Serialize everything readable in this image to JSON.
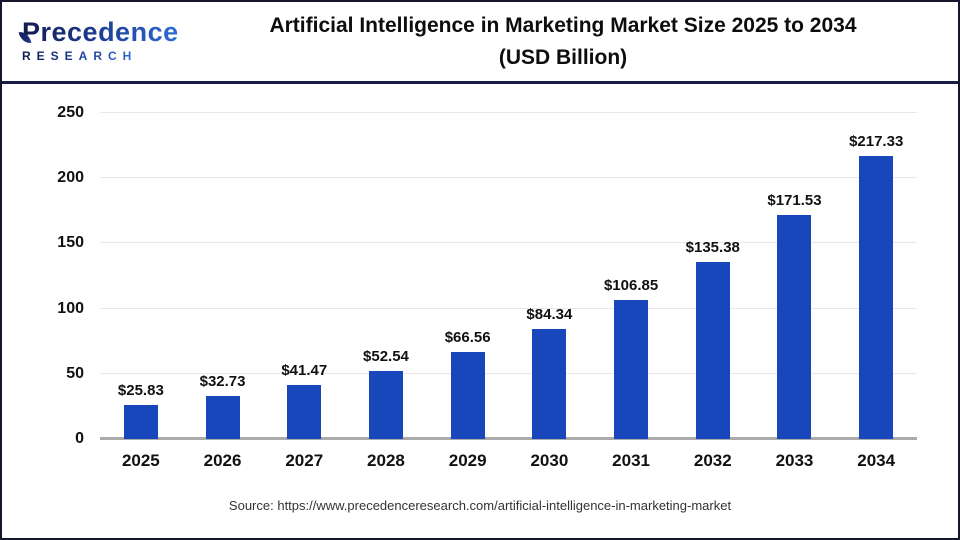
{
  "brand": {
    "name_line1": "Precedence",
    "name_line2": "RESEARCH"
  },
  "header": {
    "title_line1": "Artificial Intelligence in Marketing Market Size 2025 to 2034",
    "title_line2": "(USD Billion)"
  },
  "chart_data": {
    "type": "bar",
    "title": "Artificial Intelligence in Marketing Market Size 2025 to 2034 (USD Billion)",
    "categories": [
      "2025",
      "2026",
      "2027",
      "2028",
      "2029",
      "2030",
      "2031",
      "2032",
      "2033",
      "2034"
    ],
    "values": [
      25.83,
      32.73,
      41.47,
      52.54,
      66.56,
      84.34,
      106.85,
      135.38,
      171.53,
      217.33
    ],
    "value_labels": [
      "$25.83",
      "$32.73",
      "$41.47",
      "$52.54",
      "$66.56",
      "$84.34",
      "$106.85",
      "$135.38",
      "$171.53",
      "$217.33"
    ],
    "xlabel": "",
    "ylabel": "",
    "ylim": [
      0,
      250
    ],
    "yticks": [
      0,
      50,
      100,
      150,
      200,
      250
    ],
    "grid": true,
    "legend_position": "none",
    "bar_color": "#1847bc"
  },
  "footer": {
    "source": "Source: https://www.precedenceresearch.com/artificial-intelligence-in-marketing-market"
  },
  "colors": {
    "bar": "#1847bc",
    "header_rule": "#1b1b4a",
    "gridline": "#e8e8e8",
    "axis_baseline": "#ababab",
    "logo_dark": "#131c4e",
    "logo_light": "#2e6bd6"
  }
}
